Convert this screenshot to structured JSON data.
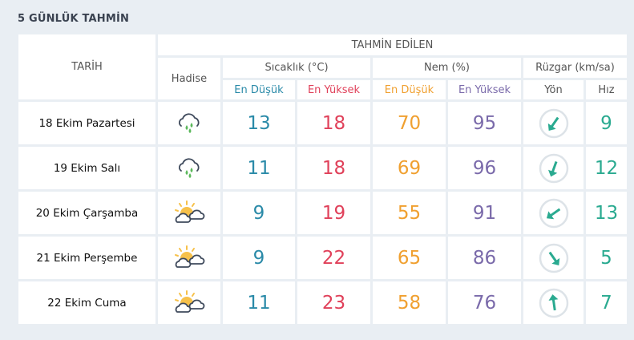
{
  "title": "5 GÜNLÜK TAHMİN",
  "header": {
    "date": "TARİH",
    "forecast": "TAHMİN EDİLEN",
    "event": "Hadise",
    "temp": "Sıcaklık (°C)",
    "humidity": "Nem (%)",
    "wind": "Rüzgar (km/sa)",
    "low": "En Düşük",
    "high": "En Yüksek",
    "direction": "Yön",
    "speed": "Hız"
  },
  "colors": {
    "low": "#2a8aa8",
    "high": "#e0415a",
    "hum_low": "#f0a030",
    "hum_high": "#7a6aaa",
    "wind": "#2aaa90"
  },
  "rows": [
    {
      "date": "18 Ekim Pazartesi",
      "icon": "rain-cloud-icon",
      "temp_low": "13",
      "temp_high": "18",
      "hum_low": "70",
      "hum_high": "95",
      "wind_dir_deg": 215,
      "wind_speed": "9"
    },
    {
      "date": "19 Ekim Salı",
      "icon": "rain-cloud-icon",
      "temp_low": "11",
      "temp_high": "18",
      "hum_low": "69",
      "hum_high": "96",
      "wind_dir_deg": 200,
      "wind_speed": "12"
    },
    {
      "date": "20 Ekim Çarşamba",
      "icon": "partly-cloudy-icon",
      "temp_low": "9",
      "temp_high": "19",
      "hum_low": "55",
      "hum_high": "91",
      "wind_dir_deg": 235,
      "wind_speed": "13"
    },
    {
      "date": "21 Ekim Perşembe",
      "icon": "partly-cloudy-icon",
      "temp_low": "9",
      "temp_high": "22",
      "hum_low": "65",
      "hum_high": "86",
      "wind_dir_deg": 145,
      "wind_speed": "5"
    },
    {
      "date": "22 Ekim Cuma",
      "icon": "partly-cloudy-icon",
      "temp_low": "11",
      "temp_high": "23",
      "hum_low": "58",
      "hum_high": "76",
      "wind_dir_deg": -8,
      "wind_speed": "7"
    }
  ]
}
